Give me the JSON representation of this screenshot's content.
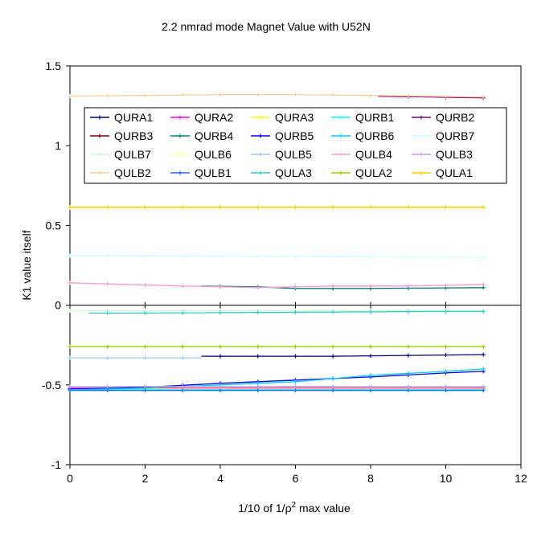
{
  "chart_data": {
    "type": "line",
    "title": "2.2 nmrad mode Magnet Value with U52N",
    "xlabel": "1/10 of 1/ρ² max value",
    "xlabel_parts": {
      "pre": "1/10 of 1/ρ",
      "sup": "2",
      "post": " max value"
    },
    "ylabel": "K1 value itself",
    "xlim": [
      0,
      12
    ],
    "ylim": [
      -1,
      1.5
    ],
    "xticks": [
      0,
      2,
      4,
      6,
      8,
      10,
      12
    ],
    "yticks": [
      -1,
      -0.5,
      0,
      0.5,
      1,
      1.5
    ],
    "xtick_labels": [
      "0",
      "2",
      "4",
      "6",
      "8",
      "10",
      "12"
    ],
    "ytick_labels": [
      "-1",
      "-0.5",
      "0",
      "0.5",
      "1",
      "1.5"
    ],
    "grid": false,
    "legend_position": "upper-inside",
    "series": [
      {
        "name": "QURA1",
        "color": "#000080",
        "points": [
          [
            3.5,
            -0.32
          ],
          [
            5,
            -0.32
          ],
          [
            7,
            -0.32
          ],
          [
            9,
            -0.315
          ],
          [
            11,
            -0.31
          ]
        ]
      },
      {
        "name": "QURA2",
        "color": "#FF00FF",
        "points": [
          [
            0,
            -0.52
          ],
          [
            11,
            -0.52
          ]
        ]
      },
      {
        "name": "QURA3",
        "color": "#FFFF00",
        "points": [
          [
            0,
            -0.525
          ],
          [
            11,
            -0.525
          ]
        ]
      },
      {
        "name": "QURB1",
        "color": "#00FFFF",
        "points": [
          [
            0,
            -0.53
          ],
          [
            11,
            -0.53
          ]
        ]
      },
      {
        "name": "QURB2",
        "color": "#800080",
        "points": [
          [
            8.2,
            1.31
          ],
          [
            11,
            1.3
          ]
        ]
      },
      {
        "name": "QURB3",
        "color": "#800000",
        "points": [
          [
            5.5,
            -0.51
          ],
          [
            6.9,
            -0.51
          ]
        ]
      },
      {
        "name": "QURB4",
        "color": "#008080",
        "points": [
          [
            3.5,
            0.12
          ],
          [
            5,
            0.115
          ],
          [
            6,
            0.105
          ],
          [
            8,
            0.105
          ],
          [
            11,
            0.11
          ]
        ]
      },
      {
        "name": "QURB5",
        "color": "#0000FF",
        "points": [
          [
            0,
            -0.525
          ],
          [
            2,
            -0.515
          ],
          [
            4,
            -0.49
          ],
          [
            6,
            -0.47
          ],
          [
            8,
            -0.45
          ],
          [
            10,
            -0.425
          ],
          [
            11,
            -0.415
          ]
        ]
      },
      {
        "name": "QURB6",
        "color": "#00CCFF",
        "points": [
          [
            0,
            -0.53
          ],
          [
            2,
            -0.52
          ],
          [
            4,
            -0.5
          ],
          [
            6,
            -0.48
          ],
          [
            7,
            -0.46
          ],
          [
            8,
            -0.44
          ],
          [
            10,
            -0.415
          ],
          [
            11,
            -0.4
          ]
        ]
      },
      {
        "name": "QURB7",
        "color": "#CCFFFF",
        "points": [
          [
            0,
            0.31
          ],
          [
            11,
            0.3
          ]
        ]
      },
      {
        "name": "QULB7",
        "color": "#CCFFCC",
        "points": [
          [
            0,
            -0.035
          ],
          [
            11,
            -0.035
          ]
        ]
      },
      {
        "name": "QULB6",
        "color": "#FFFF99",
        "points": [
          [
            0,
            0.61
          ],
          [
            11,
            0.61
          ]
        ]
      },
      {
        "name": "QULB5",
        "color": "#99CCFF",
        "points": [
          [
            0,
            -0.33
          ],
          [
            3.5,
            -0.33
          ]
        ]
      },
      {
        "name": "QULB4",
        "color": "#FF99CC",
        "points": [
          [
            0,
            0.14
          ],
          [
            3,
            0.12
          ],
          [
            5,
            0.11
          ],
          [
            7,
            0.12
          ],
          [
            9,
            0.12
          ],
          [
            11,
            0.13
          ]
        ]
      },
      {
        "name": "QULB3",
        "color": "#CC99FF",
        "points": [
          [
            0,
            -0.51
          ],
          [
            11,
            -0.51
          ]
        ]
      },
      {
        "name": "QULB2",
        "color": "#FFCC99",
        "points": [
          [
            0,
            1.31
          ],
          [
            2,
            1.315
          ],
          [
            4,
            1.32
          ],
          [
            6,
            1.32
          ],
          [
            8,
            1.315
          ],
          [
            11,
            1.305
          ]
        ]
      },
      {
        "name": "QULB1",
        "color": "#3366FF",
        "points": [
          [
            0,
            -0.535
          ],
          [
            11,
            -0.535
          ]
        ]
      },
      {
        "name": "QULA3",
        "color": "#33CCCC",
        "points": [
          [
            0.5,
            -0.05
          ],
          [
            1.5,
            -0.05
          ],
          [
            9.5,
            -0.04
          ],
          [
            11,
            -0.04
          ]
        ]
      },
      {
        "name": "QULA2",
        "color": "#99CC00",
        "points": [
          [
            0,
            -0.26
          ],
          [
            11,
            -0.26
          ]
        ]
      },
      {
        "name": "QULA1",
        "color": "#FFCC00",
        "points": [
          [
            0,
            0.615
          ],
          [
            11,
            0.615
          ]
        ]
      }
    ]
  }
}
